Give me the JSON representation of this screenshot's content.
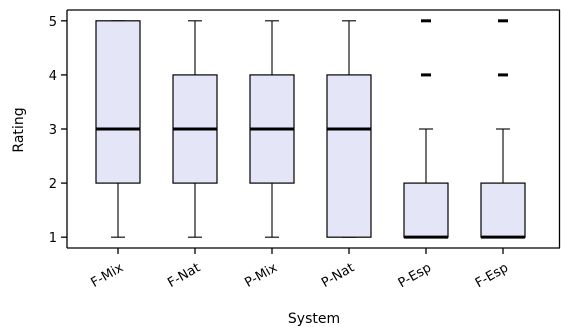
{
  "chart_data": {
    "type": "boxplot",
    "xlabel": "System",
    "ylabel": "Rating",
    "ylim": [
      0.8,
      5.2
    ],
    "yticks": [
      "1",
      "2",
      "3",
      "4",
      "5"
    ],
    "box_fill": "#e4e6f8",
    "categories": [
      "F-Mix",
      "F-Nat",
      "P-Mix",
      "P-Nat",
      "P-Esp",
      "F-Esp"
    ],
    "boxes": [
      {
        "category": "F-Mix",
        "whisker_low": 1,
        "q1": 2,
        "median": 3,
        "q3": 5,
        "whisker_high": 5,
        "outliers": []
      },
      {
        "category": "F-Nat",
        "whisker_low": 1,
        "q1": 2,
        "median": 3,
        "q3": 4,
        "whisker_high": 5,
        "outliers": []
      },
      {
        "category": "P-Mix",
        "whisker_low": 1,
        "q1": 2,
        "median": 3,
        "q3": 4,
        "whisker_high": 5,
        "outliers": []
      },
      {
        "category": "P-Nat",
        "whisker_low": 1,
        "q1": 1,
        "median": 3,
        "q3": 4,
        "whisker_high": 5,
        "outliers": []
      },
      {
        "category": "P-Esp",
        "whisker_low": 1,
        "q1": 1,
        "median": 1,
        "q3": 2,
        "whisker_high": 3,
        "outliers": [
          4,
          5
        ]
      },
      {
        "category": "F-Esp",
        "whisker_low": 1,
        "q1": 1,
        "median": 1,
        "q3": 2,
        "whisker_high": 3,
        "outliers": [
          4,
          5
        ]
      }
    ]
  }
}
